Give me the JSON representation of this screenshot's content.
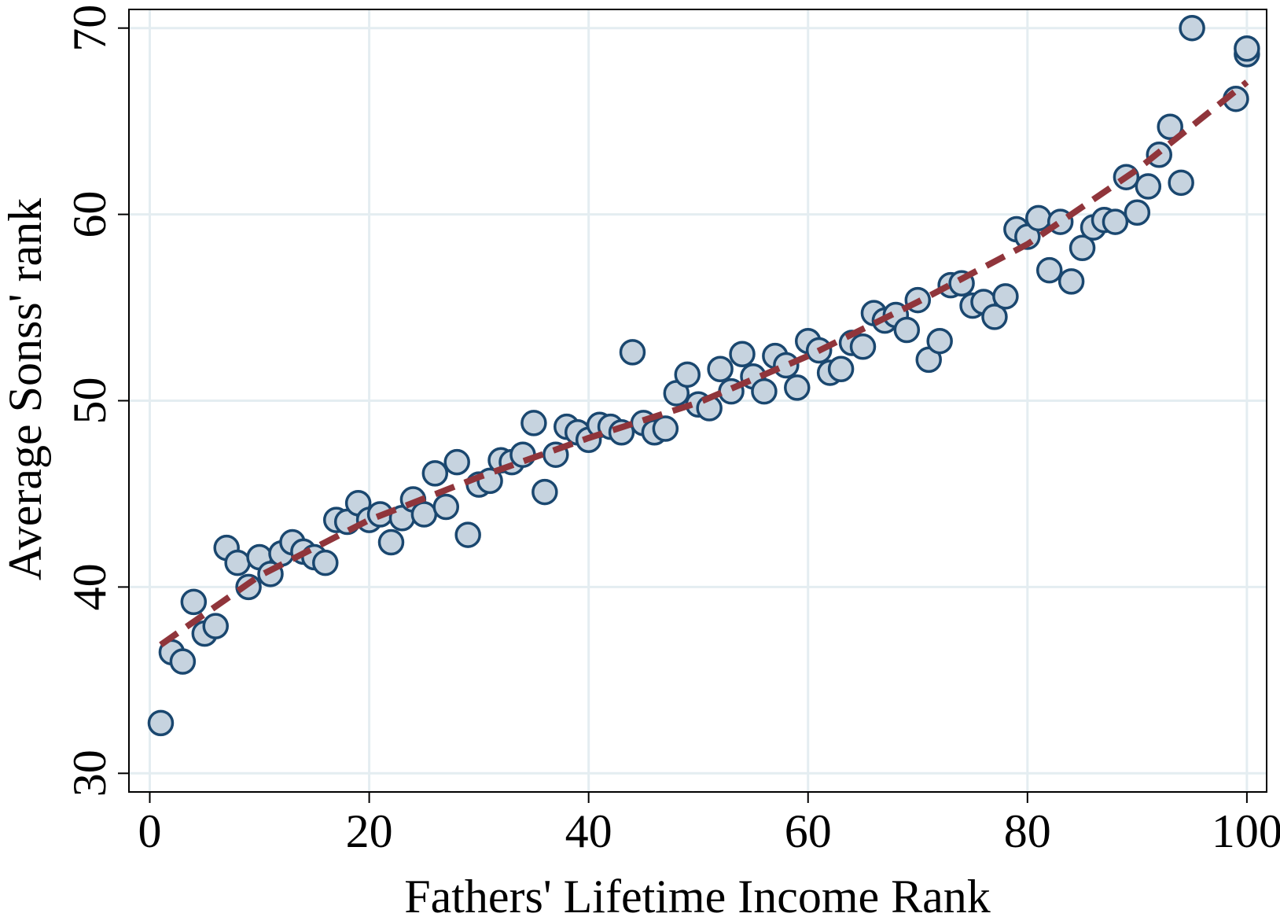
{
  "chart_data": {
    "type": "scatter",
    "xlabel": "Fathers' Lifetime Income Rank",
    "ylabel": "Average Sonss' rank",
    "x": [
      1,
      2,
      3,
      4,
      5,
      6,
      7,
      8,
      9,
      10,
      11,
      12,
      13,
      14,
      15,
      16,
      17,
      18,
      19,
      20,
      21,
      22,
      23,
      24,
      25,
      26,
      27,
      28,
      29,
      30,
      31,
      32,
      33,
      34,
      35,
      36,
      37,
      38,
      39,
      40,
      41,
      42,
      43,
      44,
      45,
      46,
      47,
      48,
      49,
      50,
      51,
      52,
      53,
      54,
      55,
      56,
      57,
      58,
      59,
      60,
      61,
      62,
      63,
      64,
      65,
      66,
      67,
      68,
      69,
      70,
      71,
      72,
      73,
      74,
      75,
      76,
      77,
      78,
      79,
      80,
      81,
      82,
      83,
      84,
      85,
      86,
      87,
      88,
      89,
      90,
      91,
      92,
      93,
      94,
      95,
      99,
      100,
      100
    ],
    "series": [
      {
        "color": "#c6d3df",
        "edgecolor": "#1a476f",
        "values": [
          32.7,
          36.5,
          36.0,
          39.2,
          37.5,
          37.9,
          42.1,
          41.3,
          40.0,
          41.6,
          40.7,
          41.8,
          42.4,
          41.9,
          41.6,
          41.3,
          43.6,
          43.5,
          44.5,
          43.6,
          43.9,
          42.4,
          43.7,
          44.7,
          43.9,
          46.1,
          44.3,
          46.7,
          42.8,
          45.5,
          45.7,
          46.8,
          46.7,
          47.1,
          48.8,
          45.1,
          47.1,
          48.6,
          48.3,
          47.9,
          48.7,
          48.6,
          48.3,
          52.6,
          48.8,
          48.3,
          48.5,
          50.4,
          51.4,
          49.8,
          49.6,
          51.7,
          50.5,
          52.5,
          51.3,
          50.5,
          52.4,
          51.9,
          50.7,
          53.2,
          52.7,
          51.5,
          51.7,
          53.1,
          52.9,
          54.7,
          54.3,
          54.6,
          53.8,
          55.4,
          52.2,
          53.2,
          56.2,
          56.3,
          55.1,
          55.3,
          54.5,
          55.6,
          59.2,
          58.8,
          59.8,
          57.0,
          59.6,
          56.4,
          58.2,
          59.3,
          59.7,
          59.6,
          62.0,
          60.1,
          61.5,
          63.2,
          64.7,
          61.7,
          70.0,
          66.2,
          68.6,
          68.9
        ]
      }
    ],
    "fit": {
      "color": "#90353b",
      "x": [
        1,
        10,
        20,
        30,
        40,
        50,
        60,
        70,
        80,
        90,
        100
      ],
      "values": [
        36.9,
        40.6,
        43.6,
        45.9,
        48.0,
        49.9,
        52.4,
        55.3,
        58.4,
        62.4,
        67.1
      ]
    },
    "xlim": [
      -1.9,
      101.8
    ],
    "ylim": [
      29,
      71
    ],
    "xticks": [
      0,
      20,
      40,
      60,
      80,
      100
    ],
    "yticks": [
      30,
      40,
      50,
      60,
      70
    ],
    "grid": true
  }
}
